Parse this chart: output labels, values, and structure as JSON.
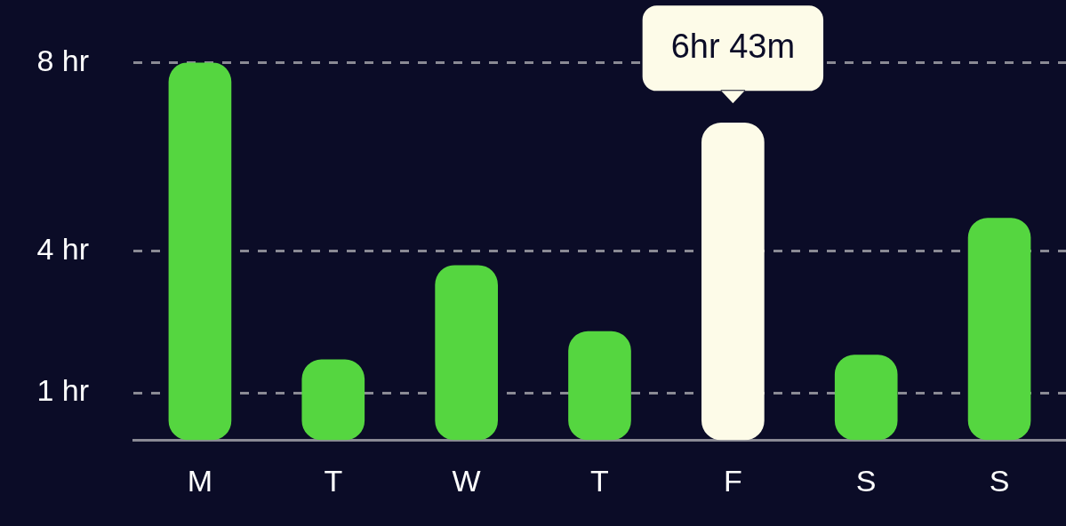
{
  "chart_data": {
    "type": "bar",
    "categories": [
      "M",
      "T",
      "W",
      "T",
      "F",
      "S",
      "S"
    ],
    "values": [
      8,
      1.7,
      3.7,
      2.3,
      6.72,
      1.8,
      4.7
    ],
    "colors": [
      "#55d640",
      "#55d640",
      "#55d640",
      "#55d640",
      "#fdfbe8",
      "#55d640",
      "#55d640"
    ],
    "ylim": [
      0,
      8
    ],
    "yticks": [
      {
        "value": 1,
        "label": "1 hr"
      },
      {
        "value": 4,
        "label": "4 hr"
      },
      {
        "value": 8,
        "label": "8 hr"
      }
    ],
    "grid": "y",
    "legend": false,
    "annotations": [
      {
        "text": "6hr 43m",
        "x": "F",
        "y": 6.72
      }
    ]
  }
}
